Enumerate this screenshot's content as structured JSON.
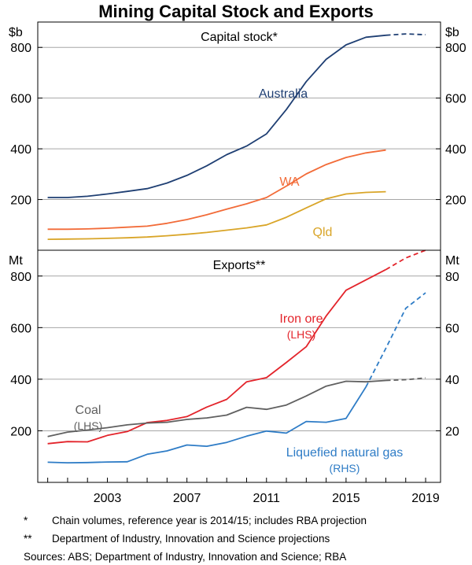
{
  "chart_data": {
    "type": "line",
    "title": "Mining Capital Stock and Exports",
    "x_ticks": [
      2003,
      2007,
      2011,
      2015,
      2019
    ],
    "panels": [
      {
        "title": "Capital stock*",
        "left_unit": "$b",
        "right_unit": "$b",
        "ylim": [
          0,
          900
        ],
        "left_ticks": [
          200,
          400,
          600,
          800
        ],
        "right_ticks": [
          200,
          400,
          600,
          800
        ],
        "series": [
          {
            "name": "Australia",
            "color": "#1f3f73",
            "x": [
              2000,
              2001,
              2002,
              2003,
              2004,
              2005,
              2006,
              2007,
              2008,
              2009,
              2010,
              2011,
              2012,
              2013,
              2014,
              2015,
              2016,
              2017
            ],
            "y": [
              208,
              208,
              213,
              222,
              232,
              243,
              265,
              295,
              333,
              377,
              411,
              459,
              555,
              665,
              753,
              810,
              840,
              848
            ],
            "projection": {
              "x": [
                2017,
                2018,
                2019
              ],
              "y": [
                848,
                853,
                850
              ]
            }
          },
          {
            "name": "WA",
            "color": "#f26b38",
            "x": [
              2000,
              2001,
              2002,
              2003,
              2004,
              2005,
              2006,
              2007,
              2008,
              2009,
              2010,
              2011,
              2012,
              2013,
              2014,
              2015,
              2016,
              2017
            ],
            "y": [
              83,
              83,
              84,
              87,
              91,
              95,
              106,
              121,
              140,
              162,
              183,
              208,
              253,
              301,
              338,
              366,
              384,
              395
            ]
          },
          {
            "name": "Qld",
            "color": "#d9a528",
            "x": [
              2000,
              2001,
              2002,
              2003,
              2004,
              2005,
              2006,
              2007,
              2008,
              2009,
              2010,
              2011,
              2012,
              2013,
              2014,
              2015,
              2016,
              2017
            ],
            "y": [
              43,
              44,
              45,
              47,
              49,
              52,
              57,
              63,
              70,
              79,
              88,
              100,
              130,
              167,
              203,
              222,
              228,
              231
            ]
          }
        ]
      },
      {
        "title": "Exports**",
        "left_unit": "Mt",
        "right_unit": "Mt",
        "ylim": [
          0,
          900
        ],
        "left_ticks": [
          200,
          400,
          600,
          800
        ],
        "right_ticks": [
          20,
          40,
          60,
          80
        ],
        "series": [
          {
            "name": "Iron ore",
            "sub": "(LHS)",
            "axis": "left",
            "color": "#e3242b",
            "x": [
              2000,
              2001,
              2002,
              2003,
              2004,
              2005,
              2006,
              2007,
              2008,
              2009,
              2010,
              2011,
              2012,
              2013,
              2014,
              2015,
              2016,
              2017
            ],
            "y": [
              150,
              158,
              157,
              182,
              197,
              232,
              240,
              255,
              292,
              322,
              390,
              406,
              465,
              526,
              645,
              745,
              785,
              825
            ],
            "projection": {
              "x": [
                2017,
                2018,
                2019
              ],
              "y": [
                825,
                870,
                900
              ]
            }
          },
          {
            "name": "Coal",
            "sub": "(LHS)",
            "axis": "left",
            "color": "#606060",
            "x": [
              2000,
              2001,
              2002,
              2003,
              2004,
              2005,
              2006,
              2007,
              2008,
              2009,
              2010,
              2011,
              2012,
              2013,
              2014,
              2015,
              2016,
              2017
            ],
            "y": [
              178,
              195,
              203,
              212,
              223,
              230,
              233,
              244,
              250,
              261,
              291,
              283,
              300,
              335,
              373,
              392,
              390,
              395
            ],
            "projection": {
              "x": [
                2017,
                2018,
                2019
              ],
              "y": [
                395,
                398,
                405
              ]
            }
          },
          {
            "name": "Liquefied natural gas",
            "sub": "(RHS)",
            "axis": "right",
            "color": "#2e7cc6",
            "x": [
              2000,
              2001,
              2002,
              2003,
              2004,
              2005,
              2006,
              2007,
              2008,
              2009,
              2010,
              2011,
              2012,
              2013,
              2014,
              2015,
              2016
            ],
            "y": [
              7.8,
              7.6,
              7.7,
              7.9,
              8.0,
              10.9,
              12.2,
              14.5,
              14.0,
              15.5,
              17.9,
              19.9,
              19.1,
              23.6,
              23.3,
              24.8,
              37.0
            ],
            "projection": {
              "x": [
                2016,
                2017,
                2018,
                2019
              ],
              "y": [
                37.0,
                52.0,
                67.5,
                73.5
              ]
            }
          }
        ]
      }
    ]
  },
  "footnotes": [
    {
      "mark": "*",
      "text": "Chain volumes, reference year is 2014/15; includes RBA projection"
    },
    {
      "mark": "**",
      "text": "Department of Industry, Innovation and Science projections"
    }
  ],
  "sources": "Sources: ABS; Department of Industry, Innovation and Science; RBA"
}
